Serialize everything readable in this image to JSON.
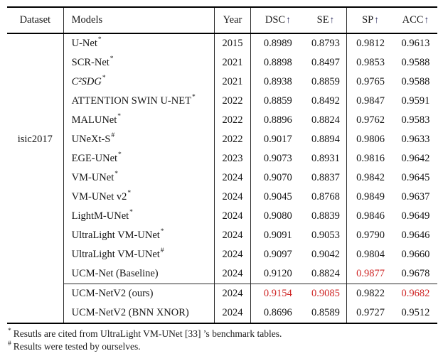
{
  "colors": {
    "highlight_red": "#cf2626",
    "rule_black": "#000000",
    "text": "#151515"
  },
  "table": {
    "arrow_char": "↑",
    "headers": {
      "dataset": "Dataset",
      "models": "Models",
      "year": "Year",
      "dsc": "DSC",
      "se": "SE",
      "sp": "SP",
      "acc": "ACC"
    },
    "dataset_label": "isic2017",
    "rows": [
      {
        "model": "U-Net",
        "sup": "*",
        "italic": false,
        "year": "2015",
        "dsc": "0.8989",
        "se": "0.8793",
        "sp": "0.9812",
        "acc": "0.9613",
        "red": [],
        "rule_above": false
      },
      {
        "model": "SCR-Net",
        "sup": "*",
        "italic": false,
        "year": "2021",
        "dsc": "0.8898",
        "se": "0.8497",
        "sp": "0.9853",
        "acc": "0.9588",
        "red": [],
        "rule_above": false
      },
      {
        "model": "C²SDG",
        "sup": "*",
        "italic": true,
        "year": "2021",
        "dsc": "0.8938",
        "se": "0.8859",
        "sp": "0.9765",
        "acc": "0.9588",
        "red": [],
        "rule_above": false
      },
      {
        "model": "ATTENTION SWIN U-NET",
        "sup": "*",
        "italic": false,
        "year": "2022",
        "dsc": "0.8859",
        "se": "0.8492",
        "sp": "0.9847",
        "acc": "0.9591",
        "red": [],
        "rule_above": false
      },
      {
        "model": "MALUNet",
        "sup": "*",
        "italic": false,
        "year": "2022",
        "dsc": "0.8896",
        "se": "0.8824",
        "sp": "0.9762",
        "acc": "0.9583",
        "red": [],
        "rule_above": false
      },
      {
        "model": "UNeXt-S",
        "sup": "#",
        "italic": false,
        "year": "2022",
        "dsc": "0.9017",
        "se": "0.8894",
        "sp": "0.9806",
        "acc": "0.9633",
        "red": [],
        "rule_above": false
      },
      {
        "model": "EGE-UNet",
        "sup": "*",
        "italic": false,
        "year": "2023",
        "dsc": "0.9073",
        "se": "0.8931",
        "sp": "0.9816",
        "acc": "0.9642",
        "red": [],
        "rule_above": false
      },
      {
        "model": "VM-UNet",
        "sup": "*",
        "italic": false,
        "year": "2024",
        "dsc": "0.9070",
        "se": "0.8837",
        "sp": "0.9842",
        "acc": "0.9645",
        "red": [],
        "rule_above": false
      },
      {
        "model": "VM-UNet v2",
        "sup": "*",
        "italic": false,
        "year": "2024",
        "dsc": "0.9045",
        "se": "0.8768",
        "sp": "0.9849",
        "acc": "0.9637",
        "red": [],
        "rule_above": false
      },
      {
        "model": "LightM-UNet",
        "sup": "*",
        "italic": false,
        "year": "2024",
        "dsc": "0.9080",
        "se": "0.8839",
        "sp": "0.9846",
        "acc": "0.9649",
        "red": [],
        "rule_above": false
      },
      {
        "model": "UltraLight VM-UNet",
        "sup": "*",
        "italic": false,
        "year": "2024",
        "dsc": "0.9091",
        "se": "0.9053",
        "sp": "0.9790",
        "acc": "0.9646",
        "red": [],
        "rule_above": false
      },
      {
        "model": "UltraLight VM-UNet",
        "sup": "#",
        "italic": false,
        "year": "2024",
        "dsc": "0.9097",
        "se": "0.9042",
        "sp": "0.9804",
        "acc": "0.9660",
        "red": [],
        "rule_above": false
      },
      {
        "model": "UCM-Net (Baseline)",
        "sup": "",
        "italic": false,
        "year": "2024",
        "dsc": "0.9120",
        "se": "0.8824",
        "sp": "0.9877",
        "acc": "0.9678",
        "red": [
          "sp"
        ],
        "rule_above": false
      },
      {
        "model": "UCM-NetV2 (ours)",
        "sup": "",
        "italic": false,
        "year": "2024",
        "dsc": "0.9154",
        "se": "0.9085",
        "sp": "0.9822",
        "acc": "0.9682",
        "red": [
          "dsc",
          "se",
          "acc"
        ],
        "rule_above": true
      },
      {
        "model": "UCM-NetV2 (BNN XNOR)",
        "sup": "",
        "italic": false,
        "year": "2024",
        "dsc": "0.8696",
        "se": "0.8589",
        "sp": "0.9727",
        "acc": "0.9512",
        "red": [],
        "rule_above": false
      }
    ],
    "footnotes": [
      {
        "sup": "*",
        "text": "Resutls are cited from UltraLight VM-UNet [33] ’s benchmark tables."
      },
      {
        "sup": "#",
        "text": "Results were tested by ourselves."
      }
    ]
  }
}
